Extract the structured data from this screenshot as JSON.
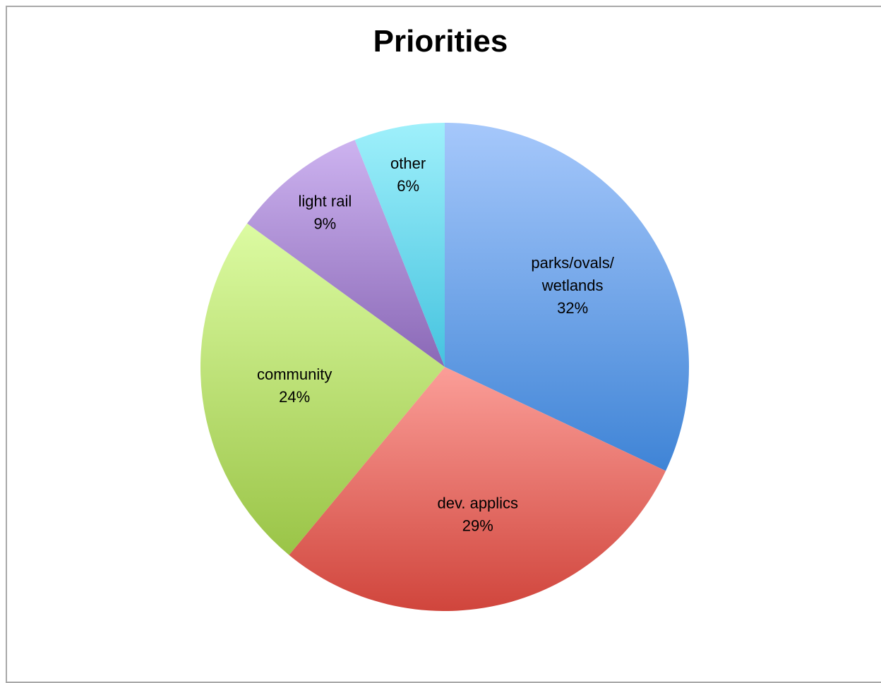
{
  "chart_data": {
    "type": "pie",
    "title": "Priorities",
    "start_angle_deg": 0,
    "direction": "clockwise",
    "slices": [
      {
        "label": "parks/ovals/wetlands",
        "value": 32,
        "percent_label": "32%",
        "label_lines": [
          "parks/ovals/",
          "wetlands"
        ],
        "color_top": "#a6c8fb",
        "color_bottom": "#3f84d6"
      },
      {
        "label": "dev. applics",
        "value": 29,
        "percent_label": "29%",
        "label_lines": [
          "dev. applics"
        ],
        "color_top": "#fb9e98",
        "color_bottom": "#d0453c"
      },
      {
        "label": "community",
        "value": 24,
        "percent_label": "24%",
        "label_lines": [
          "community"
        ],
        "color_top": "#dcfba2",
        "color_bottom": "#9ac447"
      },
      {
        "label": "light rail",
        "value": 9,
        "percent_label": "9%",
        "label_lines": [
          "light rail"
        ],
        "color_top": "#cdb3f0",
        "color_bottom": "#8a68b6"
      },
      {
        "label": "other",
        "value": 6,
        "percent_label": "6%",
        "label_lines": [
          "other"
        ],
        "color_top": "#9ff0fb",
        "color_bottom": "#45c3df"
      }
    ]
  }
}
